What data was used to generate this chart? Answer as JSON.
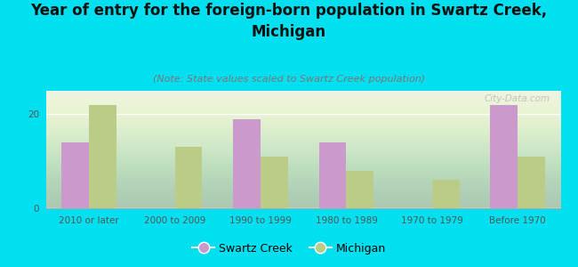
{
  "title": "Year of entry for the foreign-born population in Swartz Creek,\nMichigan",
  "subtitle": "(Note: State values scaled to Swartz Creek population)",
  "categories": [
    "2010 or later",
    "2000 to 2009",
    "1990 to 1999",
    "1980 to 1989",
    "1970 to 1979",
    "Before 1970"
  ],
  "swartz_creek": [
    14,
    0,
    19,
    14,
    0,
    22
  ],
  "michigan": [
    22,
    13,
    11,
    8,
    6,
    11
  ],
  "swartz_creek_color": "#cc99cc",
  "michigan_color": "#bbcc88",
  "background_color": "#00e0f0",
  "plot_bg_color": "#e8f2e0",
  "ylim": [
    0,
    25
  ],
  "yticks": [
    0,
    20
  ],
  "bar_width": 0.32,
  "swartz_creek_label": "Swartz Creek",
  "michigan_label": "Michigan",
  "watermark": "City-Data.com",
  "title_fontsize": 12,
  "subtitle_fontsize": 8,
  "tick_fontsize": 7.5,
  "legend_fontsize": 9
}
